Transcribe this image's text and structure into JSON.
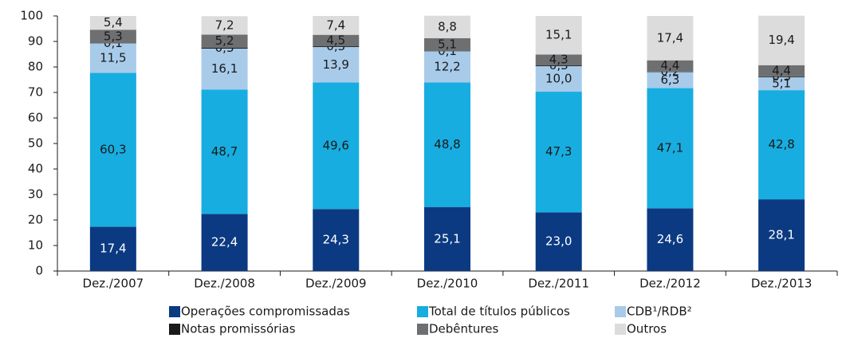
{
  "chart_data": {
    "type": "stacked_bar",
    "categories": [
      "Dez./2007",
      "Dez./2008",
      "Dez./2009",
      "Dez./2010",
      "Dez./2011",
      "Dez./2012",
      "Dez./2013"
    ],
    "series": [
      {
        "name": "Operações compromissadas",
        "color": "#0b3a82",
        "values": [
          17.4,
          22.4,
          24.3,
          25.1,
          23.0,
          24.6,
          28.1
        ],
        "value_labels": [
          "17,4",
          "22,4",
          "24,3",
          "25,1",
          "23,0",
          "24,6",
          "28,1"
        ]
      },
      {
        "name": "Total de títulos públicos",
        "color": "#17ade0",
        "values": [
          60.3,
          48.7,
          49.6,
          48.8,
          47.3,
          47.1,
          42.8
        ],
        "value_labels": [
          "60,3",
          "48,7",
          "49,6",
          "48,8",
          "47,3",
          "47,1",
          "42,8"
        ]
      },
      {
        "name": "CDB¹/RDB²",
        "color": "#a8cbea",
        "values": [
          11.5,
          16.1,
          13.9,
          12.2,
          10.0,
          6.3,
          5.1
        ],
        "value_labels": [
          "11,5",
          "16,1",
          "13,9",
          "12,2",
          "10,0",
          "6,3",
          "5,1"
        ]
      },
      {
        "name": "Notas promissórias",
        "color": "#1a1a1a",
        "values": [
          0.1,
          0.3,
          0.3,
          0.1,
          0.3,
          0.2,
          0.3
        ],
        "value_labels": [
          "0,1",
          "0,3",
          "0,3",
          "0,1",
          "0,3",
          "0,2",
          "0,3"
        ]
      },
      {
        "name": "Debêntures",
        "color": "#6e6f71",
        "values": [
          5.3,
          5.2,
          4.5,
          5.1,
          4.3,
          4.4,
          4.4
        ],
        "value_labels": [
          "5,3",
          "5,2",
          "4,5",
          "5,1",
          "4,3",
          "4,4",
          "4,4"
        ]
      },
      {
        "name": "Outros",
        "color": "#dcdcdc",
        "values": [
          5.4,
          7.2,
          7.4,
          8.8,
          15.1,
          17.4,
          19.4
        ],
        "value_labels": [
          "5,4",
          "7,2",
          "7,4",
          "8,8",
          "15,1",
          "17,4",
          "19,4"
        ]
      }
    ],
    "ylim": [
      0,
      100
    ],
    "yticks": [
      0,
      10,
      20,
      30,
      40,
      50,
      60,
      70,
      80,
      90,
      100
    ],
    "grid": false
  }
}
